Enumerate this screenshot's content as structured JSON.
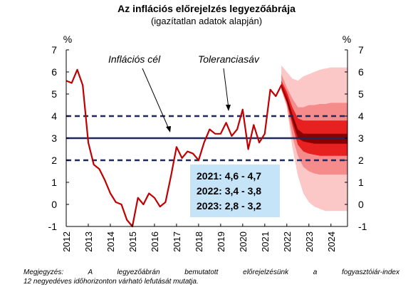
{
  "chart_data": {
    "type": "line",
    "title": "Az inflációs előrejelzés legyezőábrája",
    "subtitle": "(igazítatlan adatok alapján)",
    "y_unit_left": "%",
    "y_unit_right": "%",
    "ylim": [
      -1,
      7
    ],
    "yticks": [
      "-1",
      "0",
      "1",
      "2",
      "3",
      "4",
      "5",
      "6",
      "7"
    ],
    "xlim": [
      2012,
      2024.75
    ],
    "xticks": [
      "2012",
      "2013",
      "2014",
      "2015",
      "2016",
      "2017",
      "2018",
      "2019",
      "2020",
      "2021",
      "2022",
      "2023",
      "2024"
    ],
    "inflation_target": 3,
    "tolerance_band": [
      2,
      4
    ],
    "series": [
      {
        "color": "#c00000",
        "x": [
          2012,
          2012.25,
          2012.5,
          2012.75,
          2013,
          2013.25,
          2013.5,
          2013.75,
          2014,
          2014.25,
          2014.5,
          2014.75,
          2015,
          2015.25,
          2015.5,
          2015.75,
          2016,
          2016.25,
          2016.5,
          2016.75,
          2017,
          2017.25,
          2017.5,
          2017.75,
          2018,
          2018.25,
          2018.5,
          2018.75,
          2019,
          2019.25,
          2019.5,
          2019.75,
          2020,
          2020.25,
          2020.5,
          2020.75,
          2021,
          2021.25,
          2021.5,
          2021.75,
          2022
        ],
        "y": [
          5.6,
          5.5,
          6.1,
          5.4,
          2.8,
          1.8,
          1.6,
          1.1,
          0.5,
          0.1,
          0.0,
          -0.7,
          -1.0,
          0.3,
          0.0,
          0.5,
          0.3,
          -0.1,
          0.1,
          1.3,
          2.6,
          2.1,
          2.4,
          2.3,
          2.0,
          2.8,
          3.4,
          3.2,
          3.2,
          3.7,
          3.1,
          3.4,
          4.3,
          2.5,
          3.6,
          2.8,
          3.2,
          5.2,
          4.9,
          5.4,
          4.8
        ]
      }
    ],
    "fan": {
      "x": [
        2021.75,
        2022,
        2022.25,
        2022.5,
        2022.75,
        2023,
        2023.25,
        2023.5,
        2023.75,
        2024,
        2024.25,
        2024.5,
        2024.75
      ],
      "center": [
        5.3,
        4.7,
        3.9,
        3.2,
        3.0,
        3.0,
        2.95,
        2.95,
        2.95,
        2.95,
        2.95,
        2.95,
        2.95
      ],
      "bands": [
        {
          "color": "#fbc7c7",
          "lower": [
            5.2,
            4.4,
            2.6,
            1.3,
            0.5,
            0.1,
            -0.1,
            -0.2,
            -0.3,
            -0.3,
            -0.3,
            -0.3,
            -0.3
          ],
          "upper": [
            6.3,
            6.0,
            5.7,
            5.6,
            5.8,
            5.9,
            6.0,
            6.1,
            6.15,
            6.2,
            6.2,
            6.2,
            6.2
          ]
        },
        {
          "color": "#f58b8b",
          "lower": [
            5.2,
            4.5,
            3.1,
            2.2,
            1.7,
            1.5,
            1.4,
            1.35,
            1.35,
            1.35,
            1.35,
            1.35,
            1.35
          ],
          "upper": [
            5.9,
            5.3,
            4.8,
            4.4,
            4.4,
            4.5,
            4.5,
            4.55,
            4.55,
            4.6,
            4.6,
            4.6,
            4.6
          ]
        },
        {
          "color": "#e72020",
          "lower": [
            5.25,
            4.6,
            3.6,
            2.7,
            2.4,
            2.3,
            2.25,
            2.2,
            2.2,
            2.2,
            2.2,
            2.2,
            2.2
          ],
          "upper": [
            5.6,
            5.1,
            4.4,
            3.9,
            3.8,
            3.8,
            3.8,
            3.8,
            3.8,
            3.8,
            3.8,
            3.8,
            3.8
          ]
        },
        {
          "color": "#8a0000",
          "lower": [
            5.28,
            4.65,
            3.8,
            3.0,
            2.85,
            2.8,
            2.75,
            2.75,
            2.75,
            2.75,
            2.75,
            2.75,
            2.75
          ],
          "upper": [
            5.4,
            4.9,
            4.1,
            3.4,
            3.2,
            3.2,
            3.2,
            3.2,
            3.2,
            3.2,
            3.2,
            3.2,
            3.2
          ]
        }
      ]
    },
    "annotations": {
      "target_label": "Inflációs cél",
      "tolerance_label": "Toleranciasáv"
    },
    "forecast_box": {
      "background": "#c5e4f8",
      "lines": [
        "2021: 4,6 - 4,7",
        "2022: 3,4 - 3,8",
        "2023: 2,8 - 3,2"
      ]
    },
    "grid": false,
    "legend": "none"
  },
  "note": {
    "line1": "Megjegyzés: A legyezőábrán bemutatott előrejelzésünk a fogyasztóiár-index",
    "line2": "12 negyedéves időhorizonton várható lefutását mutatja."
  }
}
